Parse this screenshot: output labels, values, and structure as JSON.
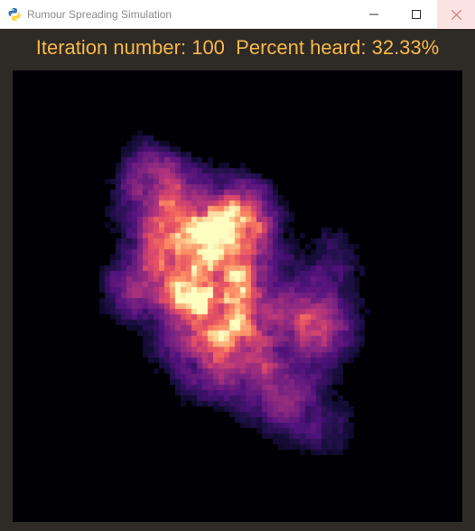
{
  "window": {
    "title": "Rumour Spreading Simulation",
    "controls": [
      "minimize",
      "maximize",
      "close"
    ]
  },
  "status": {
    "iteration_label": "Iteration number:",
    "iteration_value": "100",
    "percent_label": "Percent heard:",
    "percent_value": "32.33%"
  },
  "colors": {
    "title_text": "#8a8a8a",
    "status_text": "#f7b84b",
    "window_bg": "#2e2a25",
    "grid_bg": "#000005",
    "close_hover": "#fbe3e3"
  },
  "simulation": {
    "iteration": 100,
    "percent_heard": 32.33,
    "colormap": "magma"
  }
}
